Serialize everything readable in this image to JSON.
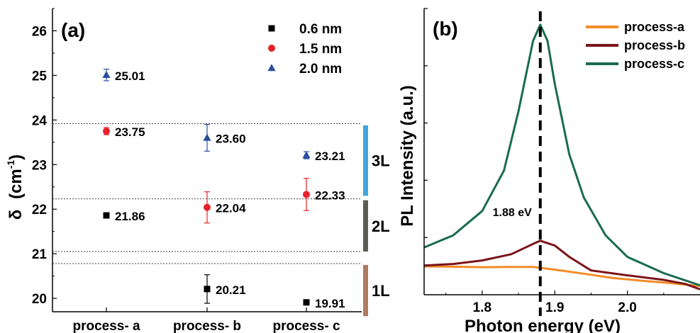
{
  "chart_data": [
    {
      "type": "scatter",
      "panel_label": "(a)",
      "ylabel_symbol": "δ",
      "ylabel_unit_base": "(cm",
      "ylabel_unit_exp": "-1",
      "ylabel_unit_close": ")",
      "ylim": [
        19.7,
        26.5
      ],
      "yticks": [
        "20",
        "21",
        "22",
        "23",
        "24",
        "25",
        "26"
      ],
      "categories": [
        "process- a",
        "process- b",
        "process- c"
      ],
      "legend_position": "top-right",
      "series": [
        {
          "name": "0.6 nm",
          "color": "#000000",
          "marker": "square",
          "values": [
            21.86,
            20.21,
            19.91
          ],
          "errors": [
            0,
            0.32,
            0
          ],
          "labels": [
            "21.86",
            "20.21",
            "19.91"
          ]
        },
        {
          "name": "1.5 nm",
          "color": "#e8212a",
          "marker": "circle",
          "values": [
            23.75,
            22.04,
            22.33
          ],
          "errors": [
            0.08,
            0.35,
            0.36
          ],
          "labels": [
            "23.75",
            "22.04",
            "22.33"
          ]
        },
        {
          "name": "2.0 nm",
          "color": "#2a4fa0",
          "marker": "triangle",
          "values": [
            25.01,
            23.6,
            23.21
          ],
          "errors": [
            0.13,
            0.3,
            0.08
          ],
          "labels": [
            "25.01",
            "23.60",
            "23.21"
          ]
        }
      ],
      "reference_lines": [
        23.92,
        22.23,
        21.05,
        20.78
      ],
      "layer_bands": [
        {
          "label": "3L",
          "from": 22.3,
          "to": 23.88,
          "color": "#3ea6dc"
        },
        {
          "label": "2L",
          "from": 21.05,
          "to": 22.2,
          "color": "#5a5e55"
        },
        {
          "label": "1L",
          "from": 19.6,
          "to": 20.75,
          "color": "#b07a62"
        }
      ],
      "grid": false
    },
    {
      "type": "line",
      "panel_label": "(b)",
      "xlabel": "Photon energy (eV)",
      "ylabel": "PL Intensity (a.u.)",
      "xlim": [
        1.72,
        2.1
      ],
      "ylim": [
        0,
        1.06
      ],
      "xticks": [
        "1.8",
        "1.9",
        "2.0"
      ],
      "legend_position": "top-right",
      "peak_marker": {
        "x": 1.88,
        "label": "1.88 eV"
      },
      "series": [
        {
          "name": "process-a",
          "color": "#f28c28",
          "x": [
            1.72,
            1.76,
            1.8,
            1.84,
            1.87,
            1.9,
            1.94,
            1.98,
            2.02,
            2.06,
            2.1
          ],
          "values": [
            0.105,
            0.104,
            0.102,
            0.103,
            0.103,
            0.093,
            0.078,
            0.062,
            0.052,
            0.043,
            0.032
          ]
        },
        {
          "name": "process-b",
          "color": "#7a1418",
          "x": [
            1.72,
            1.76,
            1.8,
            1.84,
            1.87,
            1.88,
            1.9,
            1.92,
            1.95,
            2.0,
            2.05,
            2.08,
            2.1
          ],
          "values": [
            0.108,
            0.114,
            0.127,
            0.15,
            0.188,
            0.2,
            0.182,
            0.14,
            0.09,
            0.072,
            0.055,
            0.04,
            0.02
          ]
        },
        {
          "name": "process-c",
          "color": "#1a6b50",
          "x": [
            1.72,
            1.76,
            1.8,
            1.83,
            1.85,
            1.87,
            1.88,
            1.89,
            1.9,
            1.92,
            1.94,
            1.97,
            2.0,
            2.05,
            2.1
          ],
          "values": [
            0.175,
            0.22,
            0.31,
            0.46,
            0.68,
            0.94,
            1.0,
            0.94,
            0.78,
            0.52,
            0.36,
            0.22,
            0.14,
            0.08,
            0.035
          ]
        }
      ]
    }
  ]
}
